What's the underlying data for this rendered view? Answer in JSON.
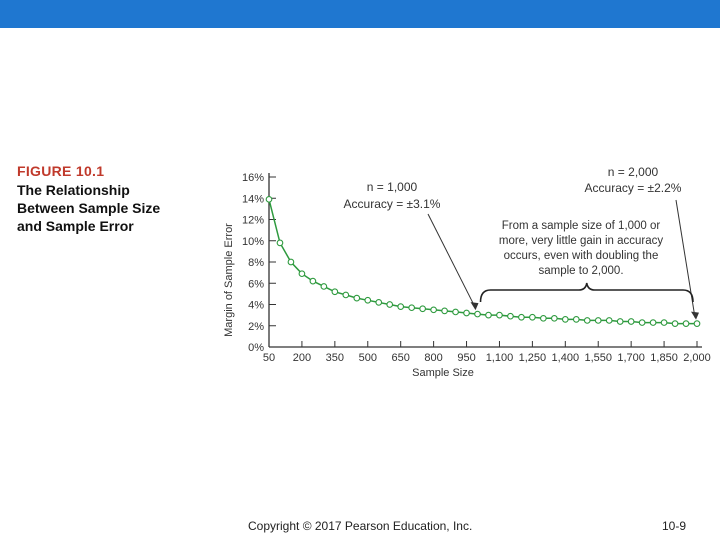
{
  "figure": {
    "label": "FIGURE 10.1",
    "caption": "The Relationship Between Sample Size and Sample Error"
  },
  "footer": {
    "copyright": "Copyright © 2017 Pearson Education, Inc.",
    "page": "10-9"
  },
  "colors": {
    "accent": "#1f77d0",
    "series": "#2e9a3e",
    "label": "#c0392b"
  },
  "chart_data": {
    "type": "line",
    "title": "",
    "xlabel": "Sample Size",
    "ylabel": "Margin of Sample Error",
    "xlim": [
      50,
      2000
    ],
    "ylim": [
      0,
      16
    ],
    "x_ticks": [
      50,
      200,
      350,
      500,
      650,
      800,
      950,
      1100,
      1250,
      1400,
      1550,
      1700,
      1850,
      2000
    ],
    "x_tick_labels": [
      "50",
      "200",
      "350",
      "500",
      "650",
      "800",
      "950",
      "1,100",
      "1,250",
      "1,400",
      "1,550",
      "1,700",
      "1,850",
      "2,000"
    ],
    "y_ticks": [
      0,
      2,
      4,
      6,
      8,
      10,
      12,
      14,
      16
    ],
    "y_tick_labels": [
      "0%",
      "2%",
      "4%",
      "6%",
      "8%",
      "10%",
      "12%",
      "14%",
      "16%"
    ],
    "series": [
      {
        "name": "Margin of Sample Error",
        "formula_note": "approx 98/sqrt(n) percent, sampled every 50"
      }
    ],
    "x": [
      50,
      100,
      150,
      200,
      250,
      300,
      350,
      400,
      450,
      500,
      550,
      600,
      650,
      700,
      750,
      800,
      850,
      900,
      950,
      1000,
      1050,
      1100,
      1150,
      1200,
      1250,
      1300,
      1350,
      1400,
      1450,
      1500,
      1550,
      1600,
      1650,
      1700,
      1750,
      1800,
      1850,
      1900,
      1950,
      2000
    ],
    "y": [
      13.9,
      9.8,
      8.0,
      6.9,
      6.2,
      5.7,
      5.2,
      4.9,
      4.6,
      4.4,
      4.2,
      4.0,
      3.8,
      3.7,
      3.6,
      3.5,
      3.4,
      3.3,
      3.2,
      3.1,
      3.0,
      3.0,
      2.9,
      2.8,
      2.8,
      2.7,
      2.7,
      2.6,
      2.6,
      2.5,
      2.5,
      2.5,
      2.4,
      2.4,
      2.3,
      2.3,
      2.3,
      2.2,
      2.2,
      2.2
    ],
    "annotations": [
      {
        "n_label": "n = 1,000",
        "accuracy_label": "Accuracy = ±3.1%",
        "x": 1000,
        "y": 3.1
      },
      {
        "n_label": "n = 2,000",
        "accuracy_label": "Accuracy = ±2.2%",
        "x": 2000,
        "y": 2.2
      }
    ],
    "bracket_text": [
      "From a sample size of 1,000 or",
      "more, very little gain in accuracy",
      "occurs, even with doubling the",
      "sample to 2,000."
    ]
  }
}
